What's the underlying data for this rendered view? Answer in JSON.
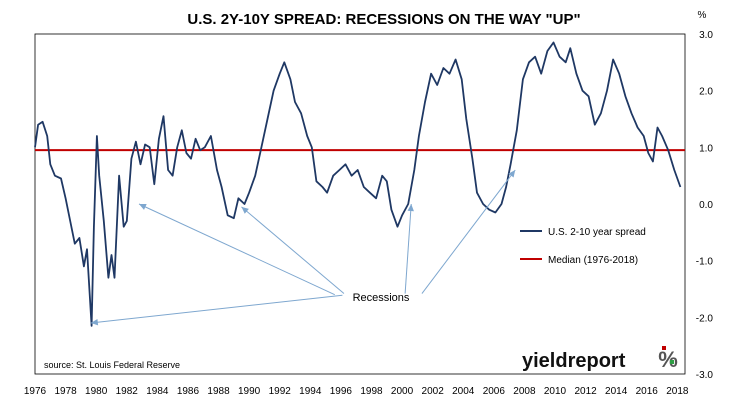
{
  "chart_data": {
    "type": "line",
    "title": "U.S. 2Y-10Y SPREAD: RECESSIONS ON THE WAY \"UP\"",
    "unit": "%",
    "source": "source: St. Louis Federal Reserve",
    "annotation": "Recessions",
    "logo_text": "yieldreport",
    "logo_symbol": "%",
    "ylim": [
      -3.0,
      3.0
    ],
    "yticks": [
      "3.0",
      "2.0",
      "1.0",
      "0.0",
      "-1.0",
      "-2.0",
      "-3.0"
    ],
    "yticks_values": [
      3,
      2,
      1,
      0,
      -1,
      -2,
      -3
    ],
    "xlim": [
      1976,
      2018.5
    ],
    "xticks": [
      "1976",
      "1978",
      "1980",
      "1982",
      "1984",
      "1986",
      "1988",
      "1990",
      "1992",
      "1994",
      "1996",
      "1998",
      "2000",
      "2002",
      "2004",
      "2006",
      "2008",
      "2010",
      "2012",
      "2014",
      "2016",
      "2018"
    ],
    "legend": [
      {
        "name": "U.S. 2-10 year spread",
        "color": "#1f3864"
      },
      {
        "name": "Median (1976-2018)",
        "color": "#c00000"
      }
    ],
    "median": 0.95,
    "series": [
      {
        "name": "U.S. 2-10 year spread",
        "color": "#1f3864",
        "points": [
          [
            1976.0,
            1.0
          ],
          [
            1976.2,
            1.4
          ],
          [
            1976.5,
            1.45
          ],
          [
            1976.8,
            1.2
          ],
          [
            1977.0,
            0.7
          ],
          [
            1977.3,
            0.5
          ],
          [
            1977.7,
            0.45
          ],
          [
            1978.0,
            0.1
          ],
          [
            1978.3,
            -0.3
          ],
          [
            1978.6,
            -0.7
          ],
          [
            1978.9,
            -0.6
          ],
          [
            1979.2,
            -1.1
          ],
          [
            1979.4,
            -0.8
          ],
          [
            1979.7,
            -2.15
          ],
          [
            1979.85,
            -0.4
          ],
          [
            1980.05,
            1.2
          ],
          [
            1980.2,
            0.5
          ],
          [
            1980.5,
            -0.3
          ],
          [
            1980.8,
            -1.3
          ],
          [
            1981.0,
            -0.9
          ],
          [
            1981.2,
            -1.3
          ],
          [
            1981.5,
            0.5
          ],
          [
            1981.8,
            -0.4
          ],
          [
            1982.0,
            -0.3
          ],
          [
            1982.3,
            0.8
          ],
          [
            1982.6,
            1.1
          ],
          [
            1982.9,
            0.7
          ],
          [
            1983.2,
            1.05
          ],
          [
            1983.5,
            1.0
          ],
          [
            1983.8,
            0.35
          ],
          [
            1984.1,
            1.15
          ],
          [
            1984.4,
            1.55
          ],
          [
            1984.7,
            0.6
          ],
          [
            1985.0,
            0.5
          ],
          [
            1985.3,
            1.0
          ],
          [
            1985.6,
            1.3
          ],
          [
            1985.9,
            0.9
          ],
          [
            1986.2,
            0.8
          ],
          [
            1986.5,
            1.15
          ],
          [
            1986.8,
            0.95
          ],
          [
            1987.1,
            1.0
          ],
          [
            1987.5,
            1.2
          ],
          [
            1987.9,
            0.6
          ],
          [
            1988.2,
            0.3
          ],
          [
            1988.6,
            -0.2
          ],
          [
            1989.0,
            -0.25
          ],
          [
            1989.3,
            0.1
          ],
          [
            1989.7,
            0.0
          ],
          [
            1990.0,
            0.2
          ],
          [
            1990.4,
            0.5
          ],
          [
            1990.8,
            1.0
          ],
          [
            1991.2,
            1.5
          ],
          [
            1991.6,
            2.0
          ],
          [
            1992.0,
            2.3
          ],
          [
            1992.3,
            2.5
          ],
          [
            1992.7,
            2.2
          ],
          [
            1993.0,
            1.8
          ],
          [
            1993.4,
            1.6
          ],
          [
            1993.8,
            1.2
          ],
          [
            1994.1,
            1.0
          ],
          [
            1994.4,
            0.4
          ],
          [
            1994.8,
            0.3
          ],
          [
            1995.1,
            0.2
          ],
          [
            1995.5,
            0.5
          ],
          [
            1995.9,
            0.6
          ],
          [
            1996.3,
            0.7
          ],
          [
            1996.7,
            0.5
          ],
          [
            1997.1,
            0.6
          ],
          [
            1997.5,
            0.3
          ],
          [
            1997.9,
            0.2
          ],
          [
            1998.3,
            0.1
          ],
          [
            1998.7,
            0.5
          ],
          [
            1999.0,
            0.4
          ],
          [
            1999.3,
            -0.1
          ],
          [
            1999.7,
            -0.4
          ],
          [
            2000.0,
            -0.2
          ],
          [
            2000.4,
            0.0
          ],
          [
            2000.8,
            0.6
          ],
          [
            2001.1,
            1.2
          ],
          [
            2001.5,
            1.8
          ],
          [
            2001.9,
            2.3
          ],
          [
            2002.3,
            2.1
          ],
          [
            2002.7,
            2.4
          ],
          [
            2003.1,
            2.3
          ],
          [
            2003.5,
            2.55
          ],
          [
            2003.9,
            2.2
          ],
          [
            2004.2,
            1.5
          ],
          [
            2004.6,
            0.8
          ],
          [
            2004.9,
            0.2
          ],
          [
            2005.3,
            0.0
          ],
          [
            2005.7,
            -0.1
          ],
          [
            2006.1,
            -0.15
          ],
          [
            2006.5,
            0.0
          ],
          [
            2006.8,
            0.3
          ],
          [
            2007.1,
            0.7
          ],
          [
            2007.5,
            1.3
          ],
          [
            2007.9,
            2.2
          ],
          [
            2008.3,
            2.5
          ],
          [
            2008.7,
            2.6
          ],
          [
            2009.1,
            2.3
          ],
          [
            2009.5,
            2.7
          ],
          [
            2009.9,
            2.85
          ],
          [
            2010.3,
            2.6
          ],
          [
            2010.7,
            2.5
          ],
          [
            2011.0,
            2.75
          ],
          [
            2011.4,
            2.3
          ],
          [
            2011.8,
            2.0
          ],
          [
            2012.2,
            1.9
          ],
          [
            2012.6,
            1.4
          ],
          [
            2013.0,
            1.6
          ],
          [
            2013.4,
            2.0
          ],
          [
            2013.8,
            2.55
          ],
          [
            2014.2,
            2.3
          ],
          [
            2014.6,
            1.9
          ],
          [
            2015.0,
            1.6
          ],
          [
            2015.4,
            1.35
          ],
          [
            2015.8,
            1.2
          ],
          [
            2016.1,
            0.9
          ],
          [
            2016.4,
            0.75
          ],
          [
            2016.7,
            1.35
          ],
          [
            2017.0,
            1.2
          ],
          [
            2017.4,
            0.95
          ],
          [
            2017.8,
            0.6
          ],
          [
            2018.2,
            0.3
          ]
        ]
      }
    ],
    "arrows": [
      {
        "from": [
          1996.1,
          -1.61
        ],
        "to": [
          1979.65,
          -2.1
        ]
      },
      {
        "from": [
          1995.6,
          -1.6
        ],
        "to": [
          1982.8,
          0.0
        ]
      },
      {
        "from": [
          1996.2,
          -1.58
        ],
        "to": [
          1989.5,
          -0.05
        ]
      },
      {
        "from": [
          2000.2,
          -1.58
        ],
        "to": [
          2000.6,
          0.0
        ]
      },
      {
        "from": [
          2001.3,
          -1.58
        ],
        "to": [
          2007.4,
          0.6
        ]
      }
    ]
  }
}
